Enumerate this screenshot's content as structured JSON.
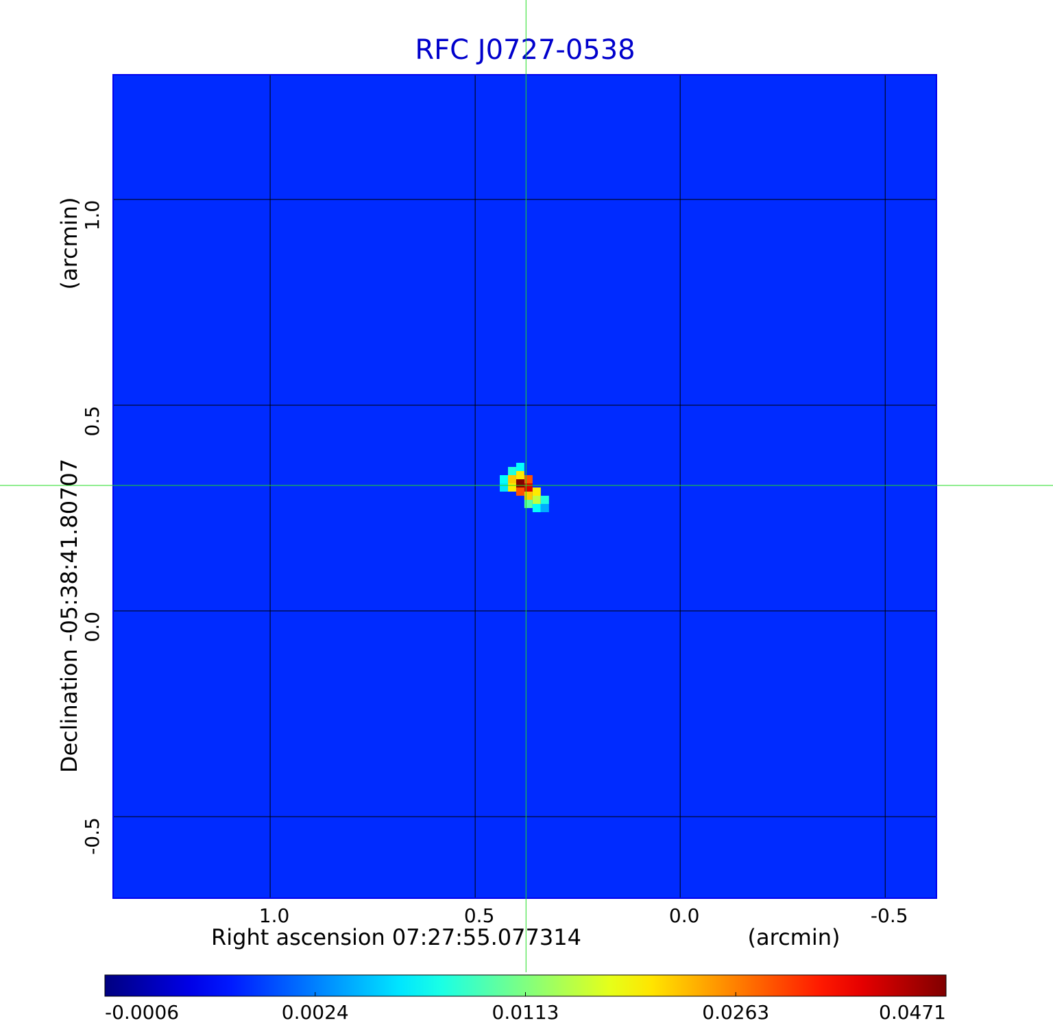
{
  "chart_data": {
    "type": "image",
    "title": "RFC J0727-0538",
    "x_label": "Right ascension  07:27:55.077314",
    "x_unit": "(arcmin)",
    "y_label": "Declination  -05:38:41.80707",
    "y_unit": "(arcmin)",
    "xlim": [
      1.383,
      -0.625
    ],
    "ylim": [
      -0.698,
      1.303
    ],
    "xticks": [
      {
        "value": 1,
        "label": "1.0"
      },
      0.5,
      {
        "value": 0,
        "label": "0.0"
      },
      -0.5
    ],
    "yticks": [
      {
        "value": 1,
        "label": "1.0"
      },
      0.5,
      {
        "value": 0,
        "label": "0.0"
      },
      -0.5
    ],
    "grid": true,
    "colormap": "jet",
    "colorbar_ticks": [
      -0.0006,
      0.0024,
      0.0113,
      0.0263,
      0.0471
    ],
    "background_value": 0.0014,
    "crosshair": {
      "x": 0.376,
      "y": 0.305,
      "color": "#22dd22"
    },
    "pixels": {
      "x": [
        0.39,
        0.37,
        0.39,
        0.37,
        0.41,
        0.41,
        0.39,
        0.35,
        0.37,
        0.35,
        0.41,
        0.39,
        0.43,
        0.43,
        0.33,
        0.35,
        0.37,
        0.33
      ],
      "y": [
        0.31,
        0.3,
        0.29,
        0.32,
        0.32,
        0.3,
        0.33,
        0.29,
        0.28,
        0.27,
        0.34,
        0.35,
        0.32,
        0.3,
        0.27,
        0.25,
        0.26,
        0.25
      ],
      "values": [
        0.0471,
        0.04,
        0.03,
        0.03,
        0.022,
        0.02,
        0.02,
        0.02,
        0.022,
        0.015,
        0.008,
        0.007,
        0.007,
        0.006,
        0.008,
        0.007,
        0.01,
        0.004
      ]
    }
  }
}
